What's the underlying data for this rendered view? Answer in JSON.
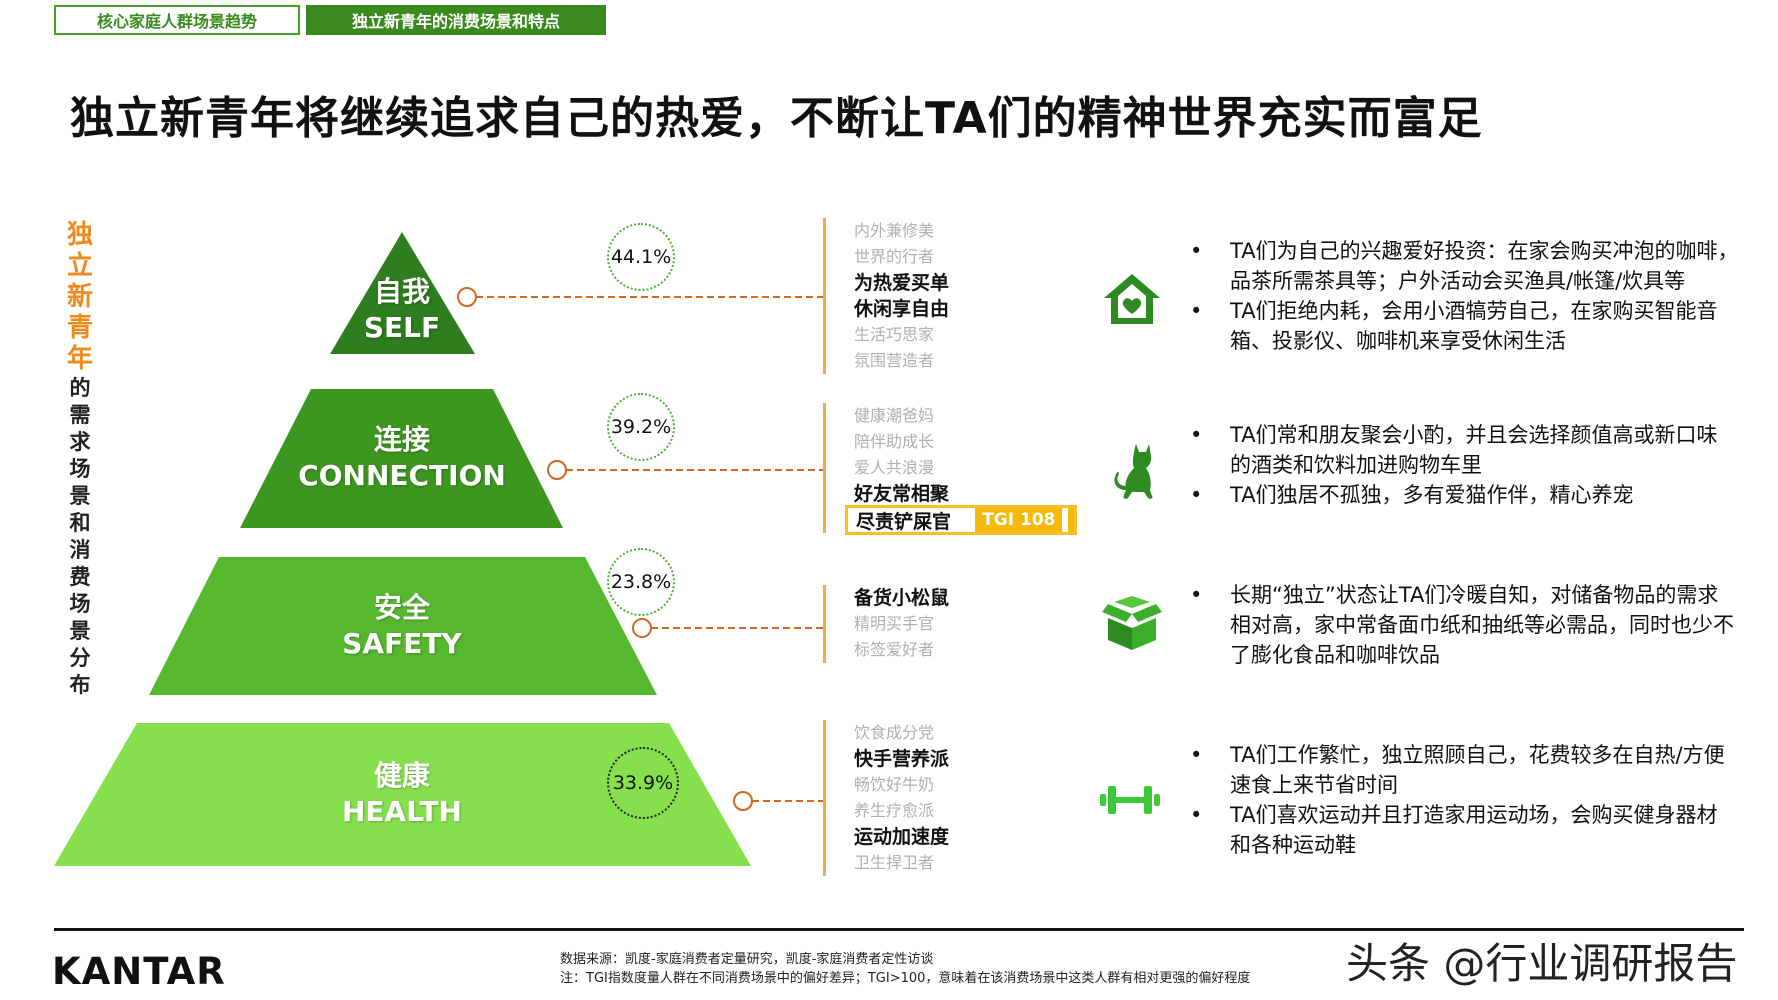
{
  "tabs": [
    "核心家庭人群场景趋势",
    "独立新青年的消费场景和特点"
  ],
  "title": "独立新青年将继续追求自己的热爱，不断让TA们的精神世界充实而富足",
  "vertical_label": {
    "highlight_chars": [
      "独",
      "立",
      "新",
      "青",
      "年"
    ],
    "rest_chars": [
      "的",
      "需",
      "求",
      "场",
      "景",
      "和",
      "消",
      "费",
      "场",
      "景",
      "分",
      "布"
    ]
  },
  "tiers": [
    {
      "cn": "自我",
      "en": "SELF",
      "pct": "44.1%",
      "color": "#2e7d1e",
      "scenes": [
        {
          "text": "内外兼修美",
          "hl": false
        },
        {
          "text": "世界的行者",
          "hl": false
        },
        {
          "text": "为热爱买单",
          "hl": true
        },
        {
          "text": "休闲享自由",
          "hl": true
        },
        {
          "text": "生活巧思家",
          "hl": false
        },
        {
          "text": "氛围营造者",
          "hl": false
        }
      ],
      "icon": "home-heart-icon",
      "bullets": [
        "TA们为自己的兴趣爱好投资：在家会购买冲泡的咖啡，品茶所需茶具等；户外活动会买渔具/帐篷/炊具等",
        "TA们拒绝内耗，会用小酒犒劳自己，在家购买智能音箱、投影仪、咖啡机来享受休闲生活"
      ]
    },
    {
      "cn": "连接",
      "en": "CONNECTION",
      "pct": "39.2%",
      "color": "#3d961f",
      "scenes": [
        {
          "text": "健康潮爸妈",
          "hl": false
        },
        {
          "text": "陪伴助成长",
          "hl": false
        },
        {
          "text": "爱人共浪漫",
          "hl": false
        },
        {
          "text": "好友常相聚",
          "hl": true
        },
        {
          "text": "尽责铲屎官",
          "hl": true
        }
      ],
      "tgi": {
        "name": "尽责铲屎官",
        "value": "TGI 108"
      },
      "icon": "cat-icon",
      "bullets": [
        "TA们常和朋友聚会小酌，并且会选择颜值高或新口味的酒类和饮料加进购物车里",
        "TA们独居不孤独，多有爱猫作伴，精心养宠"
      ]
    },
    {
      "cn": "安全",
      "en": "SAFETY",
      "pct": "23.8%",
      "color": "#56b82e",
      "scenes": [
        {
          "text": "备货小松鼠",
          "hl": true
        },
        {
          "text": "精明买手官",
          "hl": false
        },
        {
          "text": "标签爱好者",
          "hl": false
        }
      ],
      "icon": "box-icon",
      "bullets": [
        "长期“独立”状态让TA们冷暖自知，对储备物品的需求相对高，家中常备面巾纸和抽纸等必需品，同时也少不了膨化食品和咖啡饮品"
      ]
    },
    {
      "cn": "健康",
      "en": "HEALTH",
      "pct": "33.9%",
      "color": "#86e04e",
      "scenes": [
        {
          "text": "饮食成分党",
          "hl": false
        },
        {
          "text": "快手营养派",
          "hl": true
        },
        {
          "text": "畅饮好牛奶",
          "hl": false
        },
        {
          "text": "养生疗愈派",
          "hl": false
        },
        {
          "text": "运动加速度",
          "hl": true
        },
        {
          "text": "卫生捍卫者",
          "hl": false
        }
      ],
      "icon": "dumbbell-icon",
      "bullets": [
        "TA们工作繁忙，独立照顾自己，花费较多在自热/方便速食上来节省时间",
        "TA们喜欢运动并且打造家用运动场，会购买健身器材和各种运动鞋"
      ]
    }
  ],
  "footer": {
    "logo": "KANTAR",
    "source": "数据来源：凯度-家庭消费者定量研究，凯度-家庭消费者定性访谈",
    "note": "注：TGI指数度量人群在不同消费场景中的偏好差异；TGI>100，意味着在该消费场景中这类人群有相对更强的偏好程度",
    "watermark": "头条 @行业调研报告"
  }
}
